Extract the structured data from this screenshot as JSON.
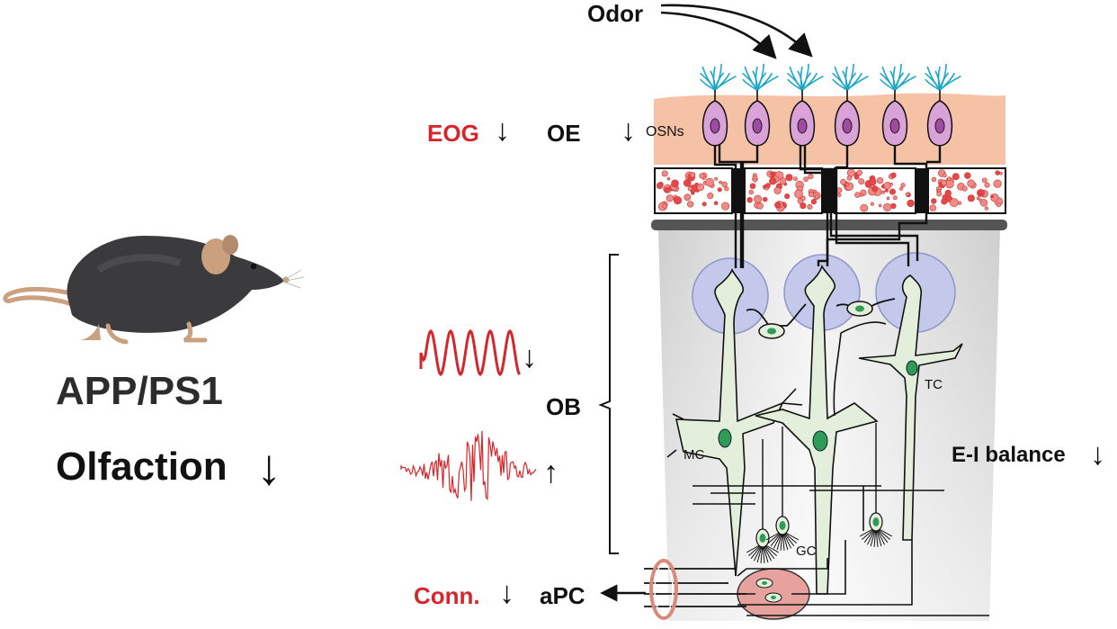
{
  "mouse": {
    "genotype": "APP/PS1",
    "phenotype": "Olfaction",
    "phenotype_arrow": "↓"
  },
  "stimulus": {
    "label": "Odor"
  },
  "epithelium": {
    "measure": "EOG",
    "measure_arrow": "↓",
    "region": "OE",
    "region_arrow": "↓",
    "cells": "OSNs"
  },
  "bulb": {
    "region": "OB",
    "oscillation_arrow": "↓",
    "noise_arrow": "↑",
    "cell_mc": "MC",
    "cell_tc": "TC",
    "cell_gc": "GC"
  },
  "balance": {
    "label": "E-I balance",
    "arrow": "↓"
  },
  "cortex": {
    "measure": "Conn.",
    "measure_arrow": "↓",
    "region": "aPC",
    "region_arrow": "←"
  },
  "colors": {
    "red": "#d7262b",
    "cilia": "#1ea7c7",
    "osn_body": "#d9a3d8",
    "nucleus_osn": "#a14aa3",
    "glomerulus": "#c4c8ea",
    "neuron": "#e3eedb",
    "nucleus_neuron": "#2e9b57",
    "bulb_bg": "#dcdcdc",
    "epithelium": "#f6c2a6",
    "tissue": "#e94747"
  }
}
